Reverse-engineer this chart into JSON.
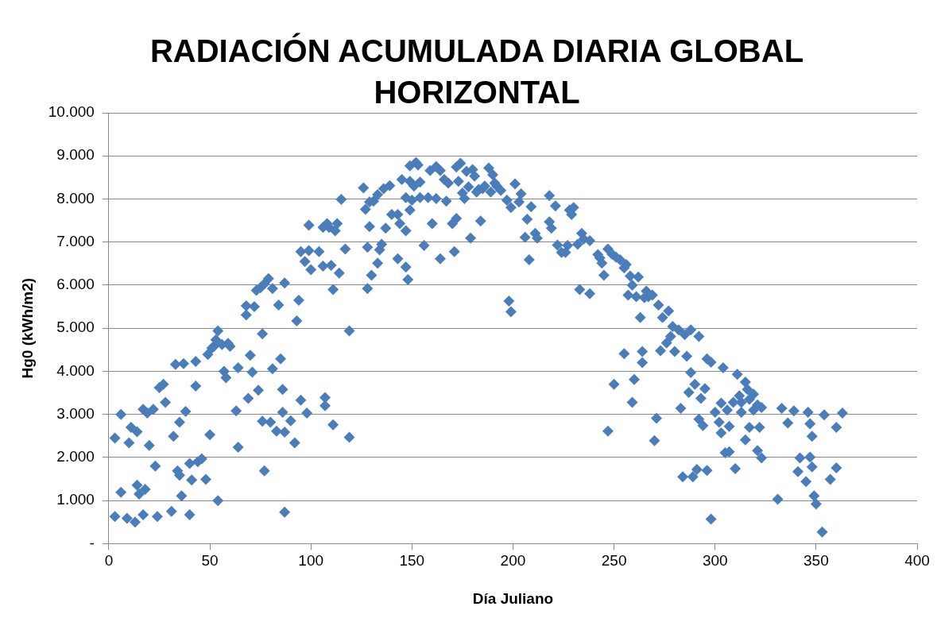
{
  "chart_data": {
    "type": "scatter",
    "title": "RADIACIÓN ACUMULADA DIARIA GLOBAL HORIZONTAL",
    "xlabel": "Día Juliano",
    "ylabel": "Hg0 (kWh/m2)",
    "xlim": [
      0,
      400
    ],
    "xticks": [
      0,
      50,
      100,
      150,
      200,
      250,
      300,
      350,
      400
    ],
    "ylim": [
      0,
      10000
    ],
    "yticks": [
      {
        "value": 0,
        "label": "-"
      },
      {
        "value": 1000,
        "label": "1.000"
      },
      {
        "value": 2000,
        "label": "2.000"
      },
      {
        "value": 3000,
        "label": "3.000"
      },
      {
        "value": 4000,
        "label": "4.000"
      },
      {
        "value": 5000,
        "label": "5.000"
      },
      {
        "value": 6000,
        "label": "6.000"
      },
      {
        "value": 7000,
        "label": "7.000"
      },
      {
        "value": 8000,
        "label": "8.000"
      },
      {
        "value": 9000,
        "label": "9.000"
      },
      {
        "value": 10000,
        "label": "10.000"
      }
    ],
    "grid": "y",
    "legend": false,
    "marker": "diamond",
    "series": [
      {
        "color": "#4a7ebb",
        "x": [
          3,
          3,
          6,
          6,
          9,
          10,
          11,
          13,
          14,
          14,
          15,
          17,
          17,
          18,
          19,
          20,
          22,
          23,
          24,
          25,
          27,
          28,
          31,
          32,
          33,
          34,
          35,
          35,
          36,
          37,
          38,
          40,
          40,
          41,
          43,
          43,
          44,
          46,
          48,
          49,
          50,
          51,
          52,
          53,
          54,
          54,
          56,
          57,
          58,
          59,
          60,
          63,
          64,
          64,
          68,
          68,
          69,
          70,
          71,
          72,
          73,
          74,
          75,
          76,
          76,
          77,
          77,
          79,
          80,
          81,
          81,
          83,
          84,
          85,
          86,
          86,
          87,
          87,
          87,
          90,
          92,
          93,
          94,
          95,
          95,
          97,
          98,
          99,
          99,
          100,
          104,
          106,
          106,
          107,
          107,
          108,
          109,
          110,
          111,
          111,
          112,
          113,
          114,
          115,
          117,
          119,
          119,
          126,
          127,
          128,
          128,
          129,
          129,
          130,
          131,
          133,
          133,
          134,
          135,
          136,
          137,
          139,
          140,
          143,
          143,
          144,
          145,
          147,
          147,
          147,
          148,
          149,
          149,
          149,
          150,
          151,
          152,
          153,
          154,
          154,
          156,
          158,
          159,
          160,
          162,
          162,
          164,
          164,
          166,
          167,
          168,
          170,
          171,
          172,
          172,
          173,
          174,
          175,
          176,
          177,
          178,
          179,
          180,
          181,
          182,
          183,
          184,
          185,
          186,
          188,
          189,
          190,
          191,
          192,
          194,
          197,
          198,
          199,
          199,
          201,
          203,
          204,
          206,
          207,
          208,
          209,
          211,
          212,
          218,
          218,
          219,
          221,
          222,
          224,
          226,
          227,
          228,
          229,
          230,
          232,
          233,
          234,
          235,
          238,
          238,
          242,
          243,
          244,
          245,
          247,
          247,
          249,
          250,
          251,
          253,
          255,
          255,
          256,
          257,
          258,
          259,
          259,
          260,
          261,
          262,
          263,
          264,
          264,
          265,
          266,
          267,
          269,
          270,
          271,
          272,
          273,
          274,
          276,
          277,
          278,
          279,
          280,
          282,
          283,
          284,
          285,
          286,
          287,
          288,
          288,
          289,
          290,
          291,
          292,
          292,
          293,
          294,
          295,
          296,
          296,
          298,
          298,
          300,
          302,
          303,
          303,
          304,
          305,
          306,
          307,
          307,
          309,
          310,
          311,
          312,
          313,
          313,
          315,
          315,
          316,
          317,
          317,
          319,
          319,
          321,
          321,
          322,
          323,
          323,
          331,
          333,
          336,
          339,
          341,
          342,
          345,
          346,
          347,
          347,
          348,
          348,
          349,
          350,
          353,
          354,
          357,
          360,
          360,
          363
        ],
        "values": [
          2450,
          630,
          3000,
          1190,
          590,
          2340,
          2700,
          500,
          2600,
          1360,
          1150,
          3120,
          670,
          1260,
          3030,
          2280,
          3120,
          1800,
          630,
          3620,
          3700,
          3280,
          750,
          2490,
          4160,
          1690,
          2820,
          1590,
          1110,
          4180,
          3070,
          1860,
          670,
          1480,
          4230,
          3660,
          1900,
          1970,
          1490,
          4390,
          2530,
          4540,
          4580,
          4730,
          4940,
          1000,
          4620,
          4000,
          3850,
          4650,
          4580,
          3080,
          2240,
          4080,
          5520,
          5310,
          3370,
          4370,
          3980,
          5500,
          5880,
          3560,
          5940,
          4870,
          2840,
          1690,
          6030,
          6150,
          2820,
          4060,
          5920,
          2610,
          5540,
          4290,
          3050,
          3580,
          730,
          6050,
          2590,
          2850,
          2340,
          5170,
          5650,
          6780,
          3330,
          6550,
          3030,
          7390,
          6800,
          6360,
          6780,
          7340,
          6440,
          3200,
          3390,
          7430,
          7340,
          6460,
          5900,
          2760,
          7260,
          7430,
          6280,
          7990,
          6840,
          4940,
          2470,
          8260,
          7760,
          5920,
          6880,
          7360,
          7930,
          6230,
          7950,
          8100,
          6510,
          6820,
          6950,
          8240,
          7320,
          8310,
          7640,
          6610,
          7640,
          7430,
          8450,
          7260,
          8030,
          6420,
          6130,
          8770,
          8410,
          7740,
          7970,
          8300,
          8850,
          8790,
          8390,
          8030,
          6920,
          8030,
          8660,
          7430,
          8750,
          8010,
          6610,
          8660,
          8450,
          7950,
          8370,
          7430,
          6780,
          7550,
          8740,
          8410,
          8830,
          8140,
          8010,
          8640,
          8280,
          7090,
          8680,
          8530,
          8160,
          8220,
          7490,
          8240,
          8300,
          8720,
          8160,
          8560,
          8370,
          8300,
          8200,
          7970,
          5630,
          5380,
          7800,
          8350,
          7930,
          8120,
          7110,
          7530,
          6590,
          7820,
          7200,
          7090,
          8080,
          7470,
          7320,
          7840,
          6930,
          6760,
          6760,
          6920,
          7740,
          7640,
          7800,
          6950,
          5900,
          7200,
          7070,
          5800,
          7030,
          6710,
          6630,
          6510,
          6230,
          6840,
          2610,
          6720,
          3700,
          6650,
          6590,
          6400,
          4410,
          6480,
          5770,
          6210,
          3280,
          6000,
          3810,
          5730,
          6190,
          5250,
          4460,
          4200,
          5710,
          5860,
          5730,
          5770,
          2390,
          2910,
          5540,
          4480,
          5250,
          4660,
          5400,
          4810,
          5040,
          4460,
          4960,
          3140,
          1550,
          4850,
          4350,
          3510,
          3970,
          4960,
          1550,
          3700,
          1720,
          2890,
          4810,
          3370,
          2740,
          3600,
          1700,
          4290,
          570,
          4210,
          3050,
          2820,
          3260,
          2570,
          4080,
          2110,
          3100,
          2720,
          2130,
          3280,
          1740,
          3930,
          3430,
          3280,
          3050,
          3750,
          2410,
          3580,
          2700,
          3350,
          3470,
          3100,
          3220,
          2160,
          2700,
          3160,
          1990,
          1030,
          3140,
          2800,
          3080,
          1670,
          1990,
          1440,
          3050,
          2780,
          2010,
          2490,
          1780,
          1110,
          920,
          270,
          2990,
          1490,
          1760,
          2700,
          3030
        ]
      }
    ]
  }
}
